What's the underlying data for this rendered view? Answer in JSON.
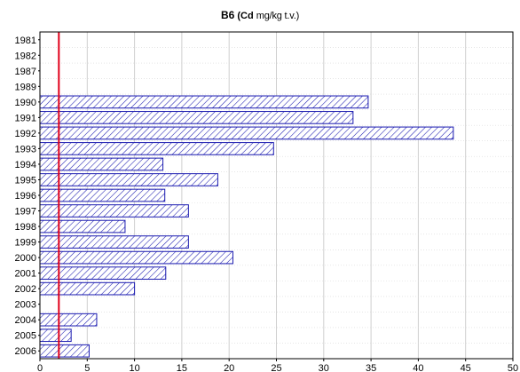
{
  "chart_data": {
    "type": "bar",
    "orientation": "horizontal",
    "title": "B6",
    "title_unit_bold": "(Cd",
    "title_unit_rest": "mg/kg t.v.)",
    "categories": [
      "1981",
      "1982",
      "1987",
      "1989",
      "1990",
      "1991",
      "1992",
      "1993",
      "1994",
      "1995",
      "1996",
      "1997",
      "1998",
      "1999",
      "2000",
      "2001",
      "2002",
      "2003",
      "2004",
      "2005",
      "2006"
    ],
    "values": [
      null,
      null,
      null,
      null,
      34.7,
      33.1,
      43.7,
      24.7,
      13.0,
      18.8,
      13.2,
      15.7,
      9.0,
      15.7,
      20.4,
      13.3,
      10.0,
      null,
      6.0,
      3.3,
      5.2
    ],
    "xlim": [
      0,
      50
    ],
    "xticks": [
      0,
      5,
      10,
      15,
      20,
      25,
      30,
      35,
      40,
      45,
      50
    ],
    "grid": "vertical",
    "reference_line": {
      "x": 2.0,
      "color": "#e0001b"
    },
    "bar_color": "#1a1ab0",
    "bar_pattern": "diagonal-hatch"
  }
}
